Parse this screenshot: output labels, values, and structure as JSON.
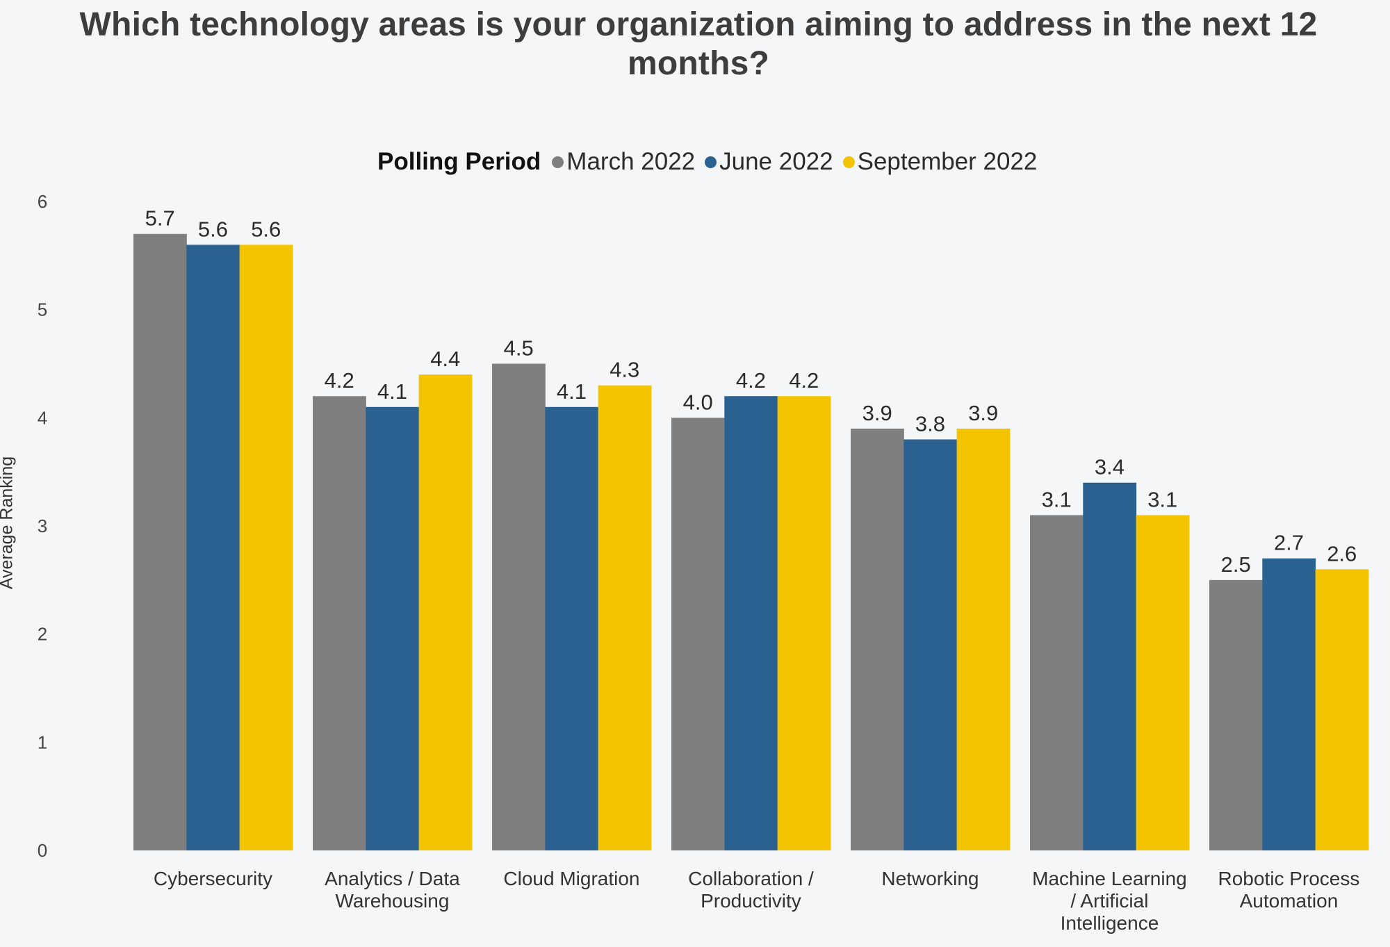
{
  "chart_data": {
    "type": "bar",
    "title": "Which technology areas is your organization aiming to address in the next 12 months?",
    "title_lines": [
      "Which technology areas is your organization aiming to address in the next 12",
      "months?"
    ],
    "xlabel": "",
    "ylabel": "Average Ranking",
    "ylim": [
      0,
      6
    ],
    "yticks": [
      0,
      1,
      2,
      3,
      4,
      5,
      6
    ],
    "grid": false,
    "legend": {
      "title": "Polling Period",
      "placement": "top-center"
    },
    "categories": [
      "Cybersecurity",
      "Analytics / Data Warehousing",
      "Cloud Migration",
      "Collaboration / Productivity",
      "Networking",
      "Machine Learning / Artificial Intelligence",
      "Robotic Process Automation"
    ],
    "category_label_lines": [
      [
        "Cybersecurity"
      ],
      [
        "Analytics / Data",
        "Warehousing"
      ],
      [
        "Cloud Migration"
      ],
      [
        "Collaboration /",
        "Productivity"
      ],
      [
        "Networking"
      ],
      [
        "Machine Learning",
        "/ Artificial",
        "Intelligence"
      ],
      [
        "Robotic Process",
        "Automation"
      ]
    ],
    "series": [
      {
        "name": "March 2022",
        "color": "#7f7f7f",
        "values": [
          5.7,
          4.2,
          4.5,
          4.0,
          3.9,
          3.1,
          2.5
        ]
      },
      {
        "name": "June 2022",
        "color": "#2b6191",
        "values": [
          5.6,
          4.1,
          4.1,
          4.2,
          3.8,
          3.4,
          2.7
        ]
      },
      {
        "name": "September 2022",
        "color": "#f5c400",
        "values": [
          5.6,
          4.4,
          4.3,
          4.2,
          3.9,
          3.1,
          2.6
        ]
      }
    ]
  }
}
